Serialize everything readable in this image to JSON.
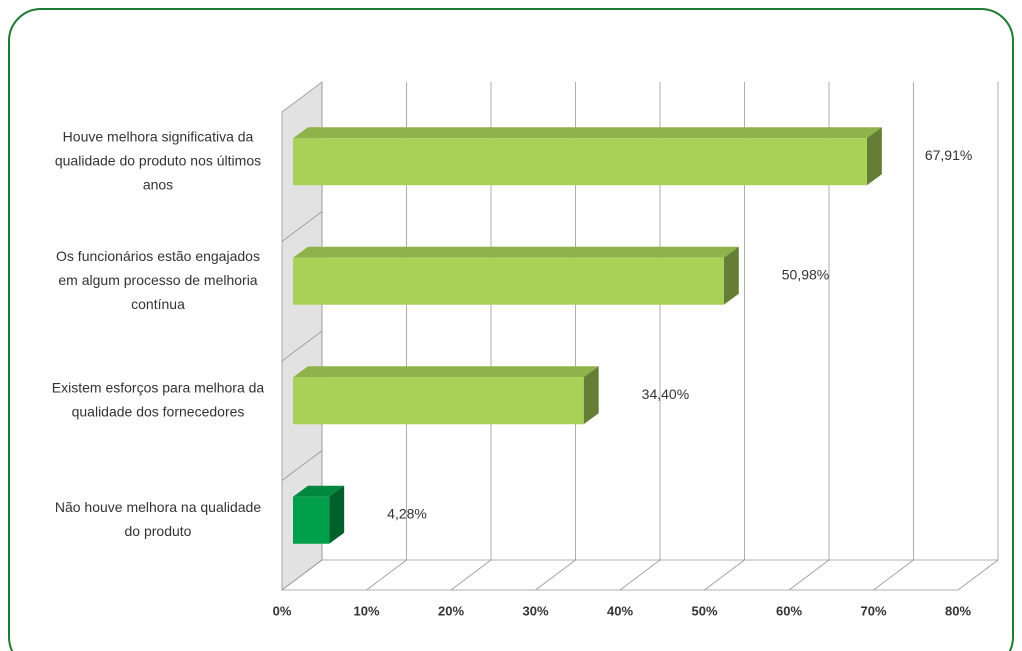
{
  "chart_data": {
    "type": "bar3d",
    "categories": [
      [
        "Houve melhora significativa da",
        "qualidade do produto nos últimos",
        "anos"
      ],
      [
        "Os funcionários estão engajados",
        "em algum processo de melhoria",
        "contínua"
      ],
      [
        "Existem esforços para melhora da",
        "qualidade dos fornecedores"
      ],
      [
        "Não houve melhora na qualidade",
        "do produto"
      ]
    ],
    "values": [
      67.91,
      50.98,
      34.4,
      4.28
    ],
    "value_labels": [
      "67,91%",
      "50,98%",
      "34,40%",
      "4,28%"
    ],
    "colors": [
      "#a9d157",
      "#a9d157",
      "#a9d157",
      "#00a04a"
    ],
    "xlim": [
      0,
      80
    ],
    "xticks": [
      {
        "value": 0,
        "label": "0%"
      },
      {
        "value": 10,
        "label": "10%"
      },
      {
        "value": 20,
        "label": "20%"
      },
      {
        "value": 30,
        "label": "30%"
      },
      {
        "value": 40,
        "label": "40%"
      },
      {
        "value": 50,
        "label": "50%"
      },
      {
        "value": 60,
        "label": "60%"
      },
      {
        "value": 70,
        "label": "70%"
      },
      {
        "value": 80,
        "label": "80%"
      }
    ],
    "grid": true
  }
}
